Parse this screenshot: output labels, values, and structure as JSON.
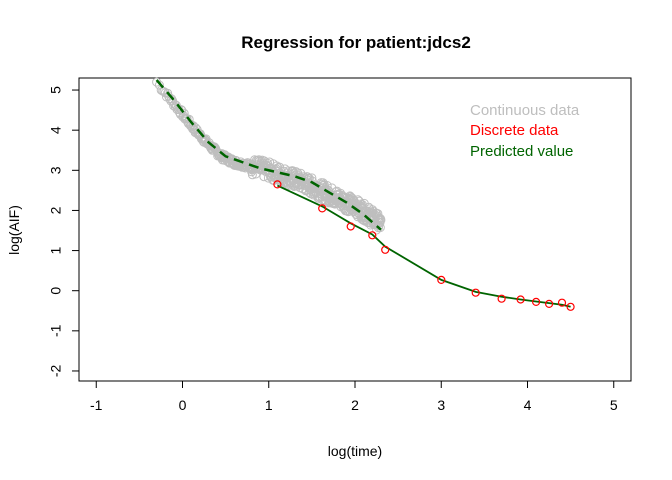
{
  "chart_data": {
    "type": "scatter",
    "title": "Regression for patient:jdcs2",
    "xlabel": "log(time)",
    "ylabel": "log(AIF)",
    "xlim": [
      -1.2,
      5.2
    ],
    "ylim": [
      -2.25,
      5.3
    ],
    "x_ticks": [
      -1,
      0,
      1,
      2,
      3,
      4,
      5
    ],
    "y_ticks": [
      -2,
      -1,
      0,
      1,
      2,
      3,
      4,
      5
    ],
    "grid": false,
    "legend_position": "top-right",
    "colors": {
      "continuous": "#bebebe",
      "discrete": "#ff0000",
      "predicted": "#006400"
    },
    "legend": [
      {
        "label": "Continuous data",
        "color": "#bebebe"
      },
      {
        "label": "Discrete data",
        "color": "#ff0000"
      },
      {
        "label": "Predicted value",
        "color": "#006400"
      }
    ],
    "continuous_trend": {
      "x": [
        -0.3,
        -0.15,
        0.0,
        0.15,
        0.3,
        0.45,
        0.6,
        0.8,
        1.0,
        1.2,
        1.4,
        1.6,
        1.8,
        2.0,
        2.15,
        2.3
      ],
      "y": [
        5.2,
        4.8,
        4.4,
        4.0,
        3.65,
        3.35,
        3.2,
        3.1,
        3.0,
        2.85,
        2.7,
        2.5,
        2.3,
        2.1,
        1.9,
        1.65
      ]
    },
    "discrete_points": {
      "x": [
        1.1,
        1.62,
        1.95,
        2.2,
        2.35,
        3.0,
        3.4,
        3.7,
        3.92,
        4.1,
        4.25,
        4.4,
        4.5
      ],
      "y": [
        2.65,
        2.05,
        1.6,
        1.38,
        1.02,
        0.27,
        -0.05,
        -0.2,
        -0.22,
        -0.28,
        -0.33,
        -0.3,
        -0.4
      ]
    },
    "predicted_dashed": {
      "x": [
        -0.3,
        -0.1,
        0.1,
        0.3,
        0.5,
        0.7,
        0.9,
        1.1,
        1.3,
        1.5,
        1.7,
        1.9,
        2.1,
        2.3
      ],
      "y": [
        5.25,
        4.75,
        4.2,
        3.7,
        3.35,
        3.2,
        3.05,
        2.95,
        2.85,
        2.7,
        2.45,
        2.2,
        1.9,
        1.52
      ]
    },
    "predicted_solid": {
      "x": [
        1.1,
        1.62,
        1.95,
        2.2,
        2.35,
        3.0,
        3.4,
        3.7,
        3.92,
        4.1,
        4.25,
        4.4,
        4.5
      ],
      "y": [
        2.62,
        2.1,
        1.68,
        1.4,
        1.1,
        0.27,
        -0.03,
        -0.15,
        -0.22,
        -0.27,
        -0.31,
        -0.35,
        -0.4
      ]
    }
  }
}
